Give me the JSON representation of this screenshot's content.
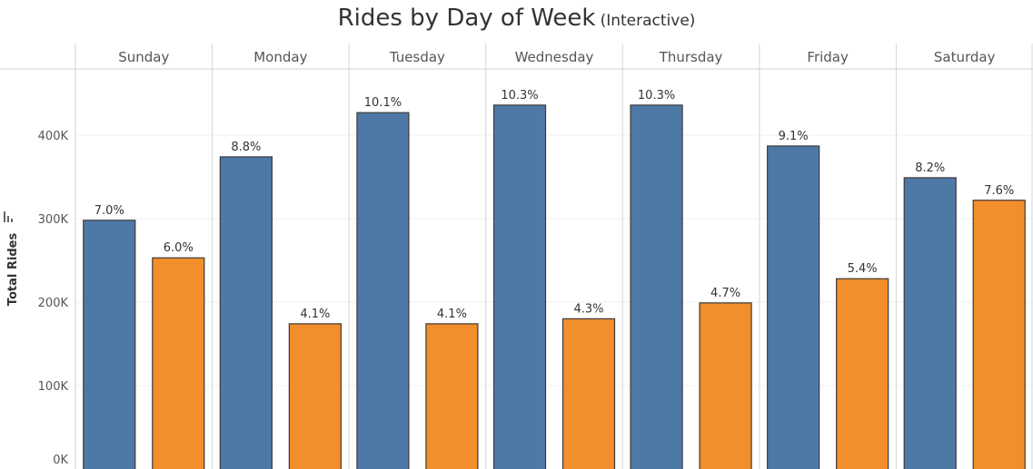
{
  "colors": {
    "series_a": "#4e79a7",
    "series_b": "#f28e2b",
    "bar_border": "#3a3a3a"
  },
  "icons": {
    "axis_icon": "bar-chart-icon"
  },
  "chart_data": {
    "type": "bar",
    "title": "Rides by Day of Week",
    "subtitle": "(Interactive)",
    "ylabel": "Total Rides",
    "xlabel": "",
    "categories": [
      "Sunday",
      "Monday",
      "Tuesday",
      "Wednesday",
      "Thursday",
      "Friday",
      "Saturday"
    ],
    "ylim": [
      0,
      460000
    ],
    "yticks": [
      0,
      100000,
      200000,
      300000,
      400000
    ],
    "ytick_labels": [
      "0K",
      "100K",
      "200K",
      "300K",
      "400K"
    ],
    "grid": true,
    "legend": "none",
    "series": [
      {
        "values": [
          298000,
          374000,
          427000,
          436000,
          436000,
          387000,
          349000
        ],
        "labels": [
          "7.0%",
          "8.8%",
          "10.1%",
          "10.3%",
          "10.3%",
          "9.1%",
          "8.2%"
        ]
      },
      {
        "values": [
          253000,
          174000,
          174000,
          180000,
          199000,
          228000,
          322000
        ],
        "labels": [
          "6.0%",
          "4.1%",
          "4.1%",
          "4.3%",
          "4.7%",
          "5.4%",
          "7.6%"
        ]
      }
    ]
  }
}
